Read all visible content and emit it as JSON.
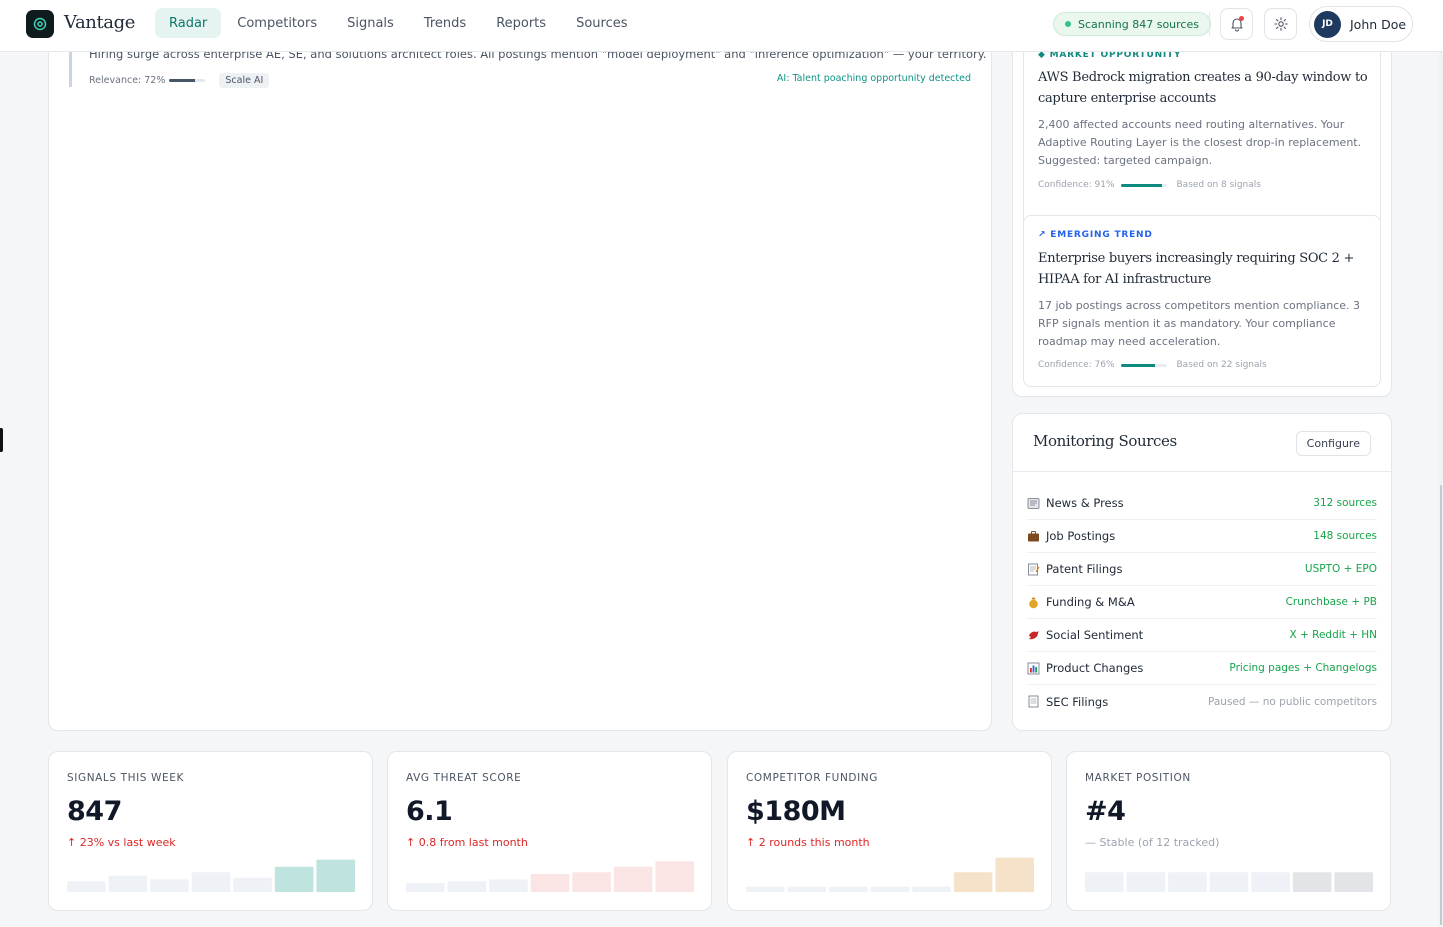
{
  "header": {
    "brand": "Vantage",
    "nav": [
      {
        "label": "Radar",
        "active": true
      },
      {
        "label": "Competitors",
        "active": false
      },
      {
        "label": "Signals",
        "active": false
      },
      {
        "label": "Trends",
        "active": false
      },
      {
        "label": "Reports",
        "active": false
      },
      {
        "label": "Sources",
        "active": false
      }
    ],
    "scan_status": "Scanning 847 sources",
    "notifications_icon": "bell-icon",
    "settings_icon": "gear-icon",
    "user": {
      "initials": "JD",
      "name": "John Doe"
    }
  },
  "feed": {
    "item": {
      "description": "Hiring surge across enterprise AE, SE, and solutions architect roles. All postings mention \"model deployment\" and \"inference optimization\" — your territory.",
      "relevance_label": "Relevance: 72%",
      "relevance": 0.72,
      "tag": "Scale AI",
      "ai_note": "AI: Talent poaching opportunity detected"
    }
  },
  "insights": [
    {
      "kicker": "◆ MARKET OPPORTUNITY",
      "kicker_color": "#0f8a80",
      "title": "AWS Bedrock migration creates a 90-day window to capture enterprise accounts",
      "body": "2,400 affected accounts need routing alternatives. Your Adaptive Routing Layer is the closest drop-in replacement. Suggested: targeted campaign.",
      "confidence_label": "Confidence: 91%",
      "confidence": 0.91,
      "basis": "Based on 8 signals"
    },
    {
      "kicker": "↗ EMERGING TREND",
      "kicker_color": "#2563eb",
      "title": "Enterprise buyers increasingly requiring SOC 2 + HIPAA for AI infrastructure",
      "body": "17 job postings across competitors mention compliance. 3 RFP signals mention it as mandatory. Your compliance roadmap may need acceleration.",
      "confidence_label": "Confidence: 76%",
      "confidence": 0.76,
      "basis": "Based on 22 signals"
    }
  ],
  "sources": {
    "title": "Monitoring Sources",
    "configure_label": "Configure",
    "items": [
      {
        "icon": "newspaper-icon",
        "label": "News & Press",
        "value": "312 sources",
        "paused": false
      },
      {
        "icon": "briefcase-icon",
        "label": "Job Postings",
        "value": "148 sources",
        "paused": false
      },
      {
        "icon": "memo-icon",
        "label": "Patent Filings",
        "value": "USPTO + EPO",
        "paused": false
      },
      {
        "icon": "money-bag-icon",
        "label": "Funding & M&A",
        "value": "Crunchbase + PB",
        "paused": false
      },
      {
        "icon": "bird-icon",
        "label": "Social Sentiment",
        "value": "X + Reddit + HN",
        "paused": false
      },
      {
        "icon": "bar-chart-icon",
        "label": "Product Changes",
        "value": "Pricing pages + Changelogs",
        "paused": false
      },
      {
        "icon": "document-icon",
        "label": "SEC Filings",
        "value": "Paused — no public competitors",
        "paused": true
      }
    ]
  },
  "stats": [
    {
      "label": "SIGNALS THIS WEEK",
      "value": "847",
      "delta": "↑ 23% vs last week",
      "trend": "up",
      "bars": [
        0.3,
        0.45,
        0.35,
        0.55,
        0.4,
        0.7,
        0.9
      ],
      "bar_color": "#eef1f5",
      "highlight_color": "#bfe3df",
      "highlight_from": 5
    },
    {
      "label": "AVG THREAT SCORE",
      "value": "6.1",
      "delta": "↑ 0.8 from last month",
      "trend": "up",
      "bars": [
        0.25,
        0.3,
        0.35,
        0.5,
        0.55,
        0.7,
        0.85
      ],
      "bar_color": "#eef1f5",
      "highlight_color": "#fbe4e4",
      "highlight_from": 3
    },
    {
      "label": "COMPETITOR FUNDING",
      "value": "$180M",
      "delta": "↑ 2 rounds this month",
      "trend": "up",
      "bars": [
        0.15,
        0.15,
        0.15,
        0.15,
        0.15,
        0.55,
        0.95
      ],
      "bar_color": "#eef1f5",
      "highlight_color": "#f6e2c8",
      "highlight_from": 5
    },
    {
      "label": "MARKET POSITION",
      "value": "#4",
      "delta": "— Stable (of 12 tracked)",
      "trend": "flat",
      "bars": [
        0.55,
        0.55,
        0.55,
        0.55,
        0.55,
        0.55,
        0.55
      ],
      "bar_color": "#eef1f5",
      "highlight_color": "#e2e4e8",
      "highlight_from": 5
    }
  ]
}
